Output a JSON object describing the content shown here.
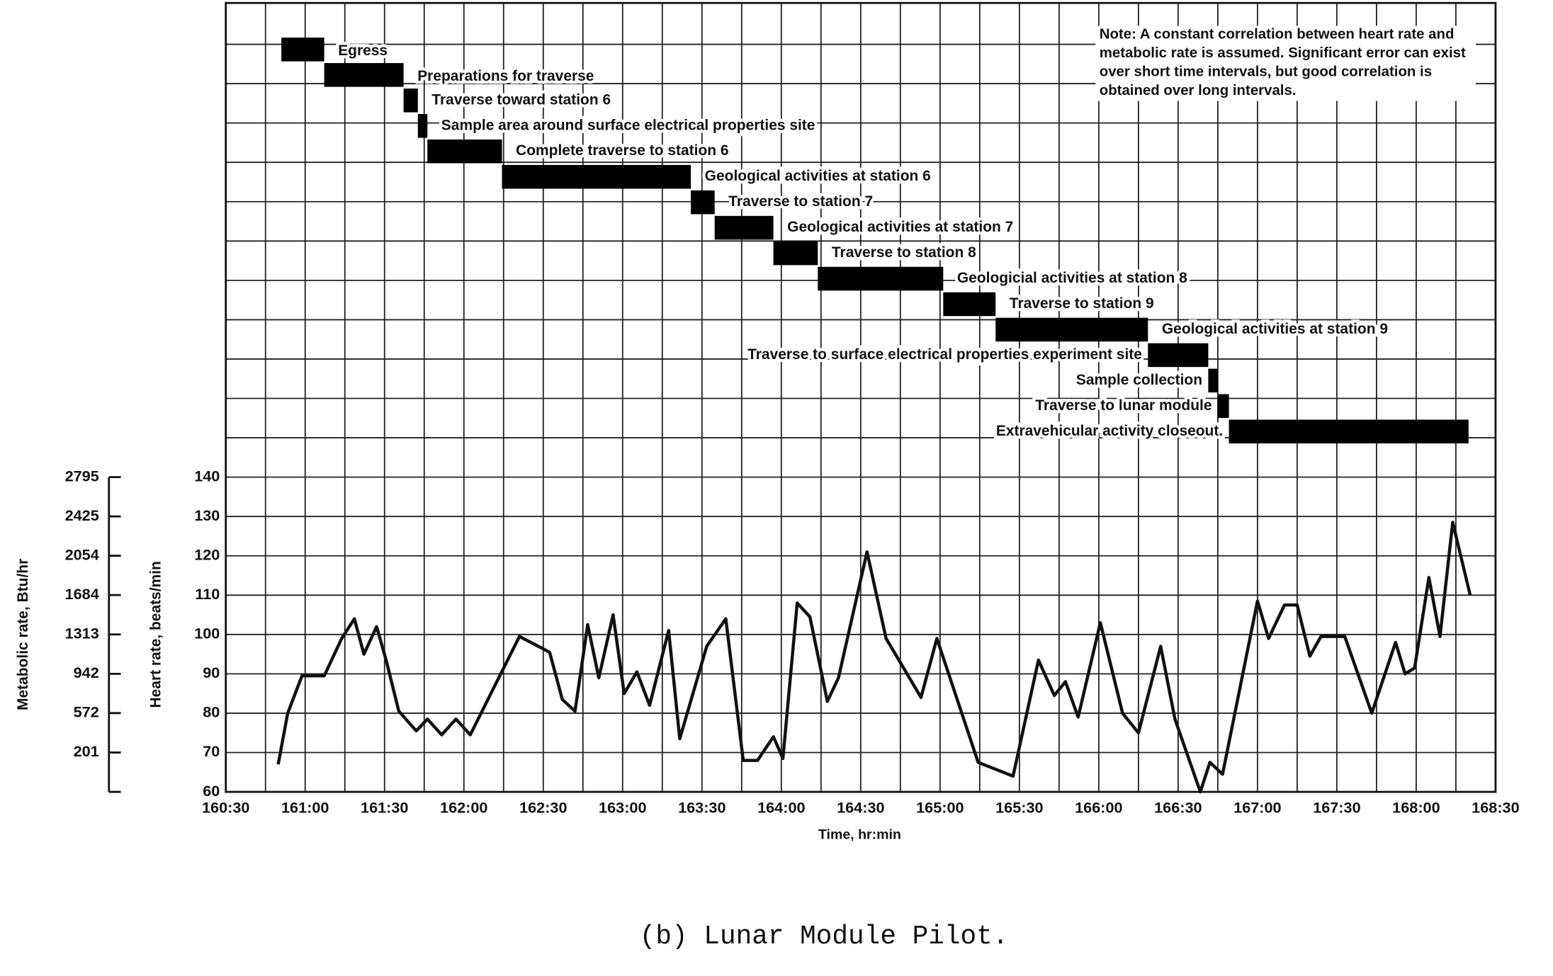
{
  "chart_data": {
    "type": "line",
    "title": "(b) Lunar Module Pilot.",
    "note": "Note: A constant correlation between heart rate and metabolic rate is assumed. Significant error can exist over short time intervals, but good correlation is obtained over long intervals.",
    "xlabel": "Time, hr:min",
    "ylabel": "Heart rate, beats/min",
    "y2label": "Metabolic rate, Btu/hr",
    "xlim": [
      160.5,
      168.5
    ],
    "xticks": [
      {
        "value": 160.5,
        "label": "160:30"
      },
      {
        "value": 161,
        "label": "161:00"
      },
      {
        "value": 161.5,
        "label": "161:30"
      },
      {
        "value": 162,
        "label": "162:00"
      },
      {
        "value": 162.5,
        "label": "162:30"
      },
      {
        "value": 163,
        "label": "163:00"
      },
      {
        "value": 163.5,
        "label": "163:30"
      },
      {
        "value": 164,
        "label": "164:00"
      },
      {
        "value": 164.5,
        "label": "164:30"
      },
      {
        "value": 165,
        "label": "165:00"
      },
      {
        "value": 165.5,
        "label": "165:30"
      },
      {
        "value": 166,
        "label": "166:00"
      },
      {
        "value": 166.5,
        "label": "166:30"
      },
      {
        "value": 167,
        "label": "167:00"
      },
      {
        "value": 167.5,
        "label": "167:30"
      },
      {
        "value": 168,
        "label": "168:00"
      },
      {
        "value": 168.5,
        "label": "168:30"
      }
    ],
    "ylim": [
      60,
      140
    ],
    "yticks": [
      60,
      70,
      80,
      90,
      100,
      110,
      120,
      130,
      140
    ],
    "y2lim": [
      -170,
      2795
    ],
    "y2ticks": [
      201,
      572,
      942,
      1313,
      1684,
      2054,
      2425,
      2795
    ],
    "grid": true,
    "color": "#111111",
    "activities": [
      {
        "label": "Egress",
        "start": 160.85,
        "end": 161.12
      },
      {
        "label": "Preparations for traverse",
        "start": 161.12,
        "end": 161.62
      },
      {
        "label": "Traverse toward station 6",
        "start": 161.62,
        "end": 161.71
      },
      {
        "label": "Sample area around surface electrical properties site",
        "start": 161.71,
        "end": 161.77
      },
      {
        "label": "Complete traverse to station 6",
        "start": 161.77,
        "end": 162.24
      },
      {
        "label": "Geological activities at station 6",
        "start": 162.24,
        "end": 163.43
      },
      {
        "label": "Traverse to station 7",
        "start": 163.43,
        "end": 163.58
      },
      {
        "label": "Geological activities at station 7",
        "start": 163.58,
        "end": 163.95
      },
      {
        "label": "Traverse to station 8",
        "start": 163.95,
        "end": 164.23
      },
      {
        "label": "Geologicial activities at station 8",
        "start": 164.23,
        "end": 165.02
      },
      {
        "label": "Traverse to station 9",
        "start": 165.02,
        "end": 165.35
      },
      {
        "label": "Geological activities at station 9",
        "start": 165.35,
        "end": 166.31
      },
      {
        "label": "Traverse to surface electrical properties experiment site",
        "start": 166.31,
        "end": 166.69
      },
      {
        "label": "Sample collection",
        "start": 166.69,
        "end": 166.75
      },
      {
        "label": "Traverse to lunar module",
        "start": 166.75,
        "end": 166.82
      },
      {
        "label": "Extravehicular activity closeout.",
        "start": 166.82,
        "end": 168.33
      }
    ],
    "x": [
      160.83,
      160.89,
      160.98,
      161.12,
      161.23,
      161.31,
      161.37,
      161.45,
      161.51,
      161.59,
      161.7,
      161.77,
      161.86,
      161.95,
      162.04,
      162.35,
      162.54,
      162.62,
      162.7,
      162.78,
      162.85,
      162.94,
      163.01,
      163.09,
      163.17,
      163.29,
      163.36,
      163.53,
      163.65,
      163.76,
      163.85,
      163.95,
      164.01,
      164.1,
      164.18,
      164.29,
      164.36,
      164.54,
      164.66,
      164.88,
      164.98,
      165.24,
      165.46,
      165.62,
      165.72,
      165.79,
      165.87,
      166.01,
      166.15,
      166.25,
      166.39,
      166.48,
      166.64,
      166.7,
      166.78,
      167.0,
      167.07,
      167.17,
      167.25,
      167.33,
      167.4,
      167.55,
      167.72,
      167.87,
      167.93,
      167.99,
      168.08,
      168.15,
      168.23,
      168.34
    ],
    "values": [
      67,
      80,
      89.5,
      89.5,
      99,
      104,
      95,
      102,
      93.5,
      80.5,
      75.5,
      78.5,
      74.5,
      78.5,
      74.5,
      99.5,
      95.5,
      83.5,
      80.5,
      102.5,
      89,
      105,
      85,
      90.5,
      82,
      101,
      73.5,
      97,
      104,
      68,
      68,
      74,
      68.5,
      108,
      104.5,
      83,
      89,
      121,
      99,
      84,
      99,
      67.5,
      64,
      93.5,
      84.5,
      88,
      79,
      103,
      80,
      75,
      97,
      78.5,
      60,
      67.5,
      64.5,
      108.5,
      99,
      107.5,
      107.5,
      94.5,
      99.5,
      99.5,
      80,
      98,
      90,
      91.5,
      114.5,
      99.5,
      128.5,
      110
    ]
  }
}
